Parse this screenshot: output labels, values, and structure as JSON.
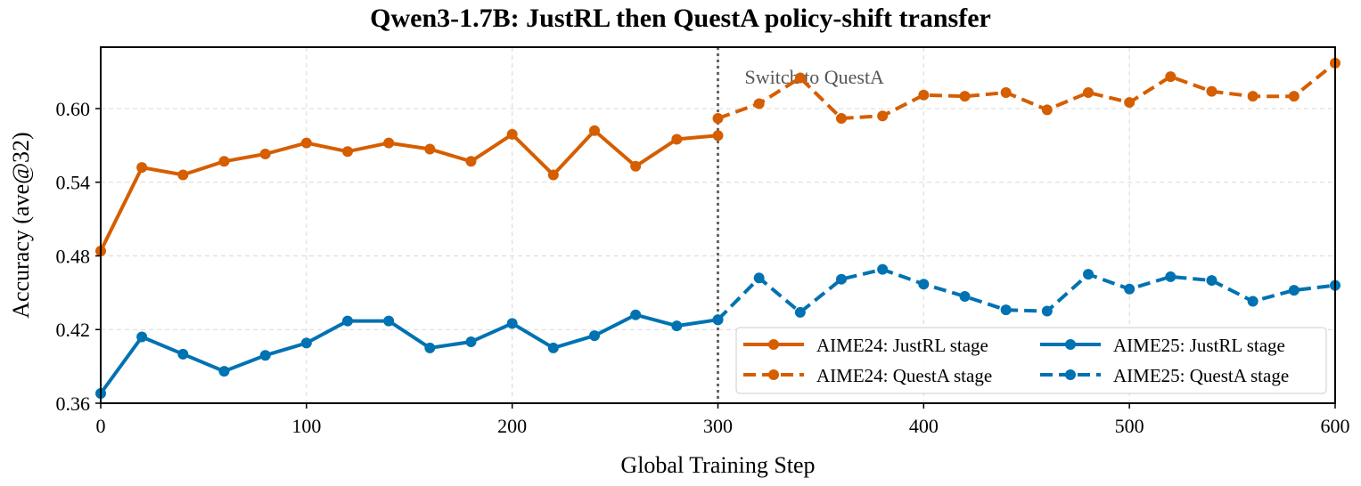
{
  "chart_data": {
    "type": "line",
    "title": "Qwen3-1.7B: JustRL then QuestA policy-shift transfer",
    "xlabel": "Global Training Step",
    "ylabel": "Accuracy (ave@32)",
    "xlim": [
      0,
      600
    ],
    "ylim": [
      0.36,
      0.65
    ],
    "xticks": [
      0,
      100,
      200,
      300,
      400,
      500,
      600
    ],
    "yticks": [
      0.36,
      0.42,
      0.48,
      0.54,
      0.6
    ],
    "ytick_labels": [
      "0.36",
      "0.42",
      "0.48",
      "0.54",
      "0.60"
    ],
    "grid": true,
    "legend_location": "lower-right",
    "legend_columns": 2,
    "annotation": {
      "text": "Switch to QuestA",
      "x": 300
    },
    "series": [
      {
        "name": "AIME24: JustRL stage",
        "color": "#d55e00",
        "linestyle": "solid",
        "x": [
          0,
          20,
          40,
          60,
          80,
          100,
          120,
          140,
          160,
          180,
          200,
          220,
          240,
          260,
          280,
          300
        ],
        "y": [
          0.484,
          0.552,
          0.546,
          0.557,
          0.563,
          0.572,
          0.565,
          0.572,
          0.567,
          0.557,
          0.579,
          0.546,
          0.582,
          0.553,
          0.575,
          0.578
        ]
      },
      {
        "name": "AIME24: QuestA stage",
        "color": "#d55e00",
        "linestyle": "dashed",
        "x": [
          300,
          320,
          340,
          360,
          380,
          400,
          420,
          440,
          460,
          480,
          500,
          520,
          540,
          560,
          580,
          600
        ],
        "y": [
          0.592,
          0.604,
          0.625,
          0.592,
          0.594,
          0.611,
          0.61,
          0.613,
          0.599,
          0.613,
          0.605,
          0.626,
          0.614,
          0.61,
          0.61,
          0.637
        ]
      },
      {
        "name": "AIME25: JustRL stage",
        "color": "#0072b2",
        "linestyle": "solid",
        "x": [
          0,
          20,
          40,
          60,
          80,
          100,
          120,
          140,
          160,
          180,
          200,
          220,
          240,
          260,
          280,
          300
        ],
        "y": [
          0.368,
          0.414,
          0.4,
          0.386,
          0.399,
          0.409,
          0.427,
          0.427,
          0.405,
          0.41,
          0.425,
          0.405,
          0.415,
          0.432,
          0.423,
          0.428
        ]
      },
      {
        "name": "AIME25: QuestA stage",
        "color": "#0072b2",
        "linestyle": "dashed",
        "x": [
          300,
          320,
          340,
          360,
          380,
          400,
          420,
          440,
          460,
          480,
          500,
          520,
          540,
          560,
          580,
          600
        ],
        "y": [
          0.428,
          0.462,
          0.434,
          0.461,
          0.469,
          0.457,
          0.447,
          0.436,
          0.435,
          0.465,
          0.453,
          0.463,
          0.46,
          0.443,
          0.452,
          0.456
        ]
      }
    ]
  }
}
